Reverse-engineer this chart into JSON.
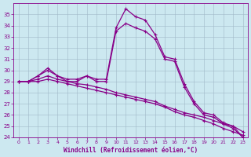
{
  "xlabel": "Windchill (Refroidissement éolien,°C)",
  "background_color": "#cce8f0",
  "grid_color": "#a0b8c8",
  "line_color": "#880088",
  "xlim": [
    -0.5,
    23.5
  ],
  "ylim": [
    24,
    36
  ],
  "yticks": [
    24,
    25,
    26,
    27,
    28,
    29,
    30,
    31,
    32,
    33,
    34,
    35
  ],
  "xticks": [
    0,
    1,
    2,
    3,
    4,
    5,
    6,
    7,
    8,
    9,
    10,
    11,
    12,
    13,
    14,
    15,
    16,
    17,
    18,
    19,
    20,
    21,
    22,
    23
  ],
  "series": [
    {
      "x": [
        0,
        1,
        2,
        3,
        4,
        5,
        6,
        7,
        8,
        9,
        10,
        11,
        12,
        13,
        14,
        15,
        16,
        17,
        18,
        19,
        20,
        21,
        22,
        23
      ],
      "y": [
        29,
        29,
        29.5,
        30.2,
        29.5,
        29.2,
        29.2,
        29.5,
        29.2,
        29.2,
        33.8,
        35.5,
        34.8,
        34.5,
        33.2,
        31.2,
        31.0,
        28.8,
        27.2,
        26.2,
        26.0,
        25.3,
        25.0,
        24.0
      ]
    },
    {
      "x": [
        0,
        1,
        2,
        3,
        4,
        5,
        6,
        7,
        8,
        9,
        10,
        11,
        12,
        13,
        14,
        15,
        16,
        17,
        18,
        19,
        20,
        21,
        22,
        23
      ],
      "y": [
        29,
        29,
        29.5,
        30.0,
        29.5,
        29.0,
        29.0,
        29.5,
        29.0,
        29.0,
        33.5,
        34.2,
        33.8,
        33.5,
        32.8,
        31.0,
        30.8,
        28.5,
        27.0,
        26.0,
        25.8,
        25.2,
        24.8,
        24.0
      ]
    },
    {
      "x": [
        0,
        1,
        2,
        3,
        4,
        5,
        6,
        7,
        8,
        9,
        10,
        11,
        12,
        13,
        14,
        15,
        16,
        17,
        18,
        19,
        20,
        21,
        22,
        23
      ],
      "y": [
        29.0,
        29.0,
        29.2,
        29.5,
        29.2,
        29.0,
        28.8,
        28.7,
        28.5,
        28.3,
        28.0,
        27.8,
        27.6,
        27.4,
        27.2,
        26.8,
        26.5,
        26.2,
        26.0,
        25.8,
        25.5,
        25.2,
        25.0,
        24.5
      ]
    },
    {
      "x": [
        0,
        1,
        2,
        3,
        4,
        5,
        6,
        7,
        8,
        9,
        10,
        11,
        12,
        13,
        14,
        15,
        16,
        17,
        18,
        19,
        20,
        21,
        22,
        23
      ],
      "y": [
        29.0,
        29.0,
        29.0,
        29.2,
        29.0,
        28.8,
        28.6,
        28.4,
        28.2,
        28.0,
        27.8,
        27.6,
        27.4,
        27.2,
        27.0,
        26.7,
        26.3,
        26.0,
        25.8,
        25.5,
        25.2,
        24.8,
        24.5,
        24.2
      ]
    }
  ]
}
